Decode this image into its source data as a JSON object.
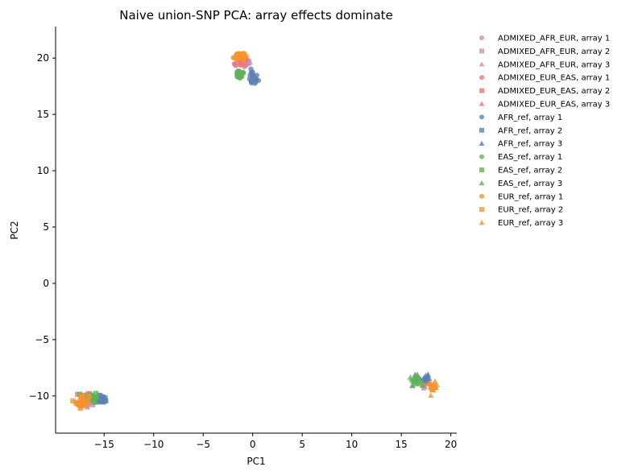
{
  "chart_data": {
    "type": "scatter",
    "title": "Naive union-SNP PCA: array effects dominate",
    "xlabel": "PC1",
    "ylabel": "PC2",
    "xlim": [
      -19.9,
      20.6
    ],
    "ylim": [
      -13.3,
      22.8
    ],
    "xticks": [
      -15,
      -10,
      -5,
      0,
      5,
      10,
      15,
      20
    ],
    "xtick_labels": [
      "−15",
      "−10",
      "−5",
      "0",
      "5",
      "10",
      "15",
      "20"
    ],
    "yticks": [
      -10,
      -5,
      0,
      5,
      10,
      15,
      20
    ],
    "ytick_labels": [
      "−10",
      "−5",
      "0",
      "5",
      "10",
      "15",
      "20"
    ],
    "grid": false,
    "legend_position": "outside-right",
    "colors": {
      "ADMIXED_AFR_EUR": "#c992b4",
      "ADMIXED_EUR_EAS": "#e8787c",
      "AFR_ref": "#5b82b4",
      "EAS_ref": "#63b05a",
      "EUR_ref": "#f7922e"
    },
    "markers": {
      "array 1": "circle",
      "array 2": "square",
      "array 3": "triangle"
    },
    "clusters": [
      {
        "name": "array 1 cluster",
        "center": [
          -0.8,
          19.0
        ]
      },
      {
        "name": "array 2 cluster",
        "center": [
          -16.5,
          -10.3
        ]
      },
      {
        "name": "array 3 cluster",
        "center": [
          17.3,
          -8.9
        ]
      }
    ],
    "series": [
      {
        "name": "ADMIXED_AFR_EUR, array 1",
        "group": "ADMIXED_AFR_EUR",
        "marker": "circle",
        "center": [
          -0.6,
          19.6
        ],
        "spread": [
          0.6,
          0.5
        ],
        "n": 12
      },
      {
        "name": "ADMIXED_AFR_EUR, array 2",
        "group": "ADMIXED_AFR_EUR",
        "marker": "square",
        "center": [
          -16.6,
          -10.4
        ],
        "spread": [
          0.7,
          0.4
        ],
        "n": 12
      },
      {
        "name": "ADMIXED_AFR_EUR, array 3",
        "group": "ADMIXED_AFR_EUR",
        "marker": "triangle",
        "center": [
          17.6,
          -9.0
        ],
        "spread": [
          0.5,
          0.4
        ],
        "n": 12
      },
      {
        "name": "ADMIXED_EUR_EAS, array 1",
        "group": "ADMIXED_EUR_EAS",
        "marker": "circle",
        "center": [
          -1.2,
          19.5
        ],
        "spread": [
          0.6,
          0.4
        ],
        "n": 12
      },
      {
        "name": "ADMIXED_EUR_EAS, array 2",
        "group": "ADMIXED_EUR_EAS",
        "marker": "square",
        "center": [
          -17.0,
          -10.2
        ],
        "spread": [
          0.6,
          0.5
        ],
        "n": 14
      },
      {
        "name": "ADMIXED_EUR_EAS, array 3",
        "group": "ADMIXED_EUR_EAS",
        "marker": "triangle",
        "center": [
          17.4,
          -8.8
        ],
        "spread": [
          0.4,
          0.3
        ],
        "n": 8
      },
      {
        "name": "AFR_ref, array 1",
        "group": "AFR_ref",
        "marker": "circle",
        "center": [
          0.0,
          18.2
        ],
        "spread": [
          0.5,
          0.6
        ],
        "n": 22
      },
      {
        "name": "AFR_ref, array 2",
        "group": "AFR_ref",
        "marker": "square",
        "center": [
          -15.2,
          -10.3
        ],
        "spread": [
          0.5,
          0.3
        ],
        "n": 20
      },
      {
        "name": "AFR_ref, array 3",
        "group": "AFR_ref",
        "marker": "triangle",
        "center": [
          17.2,
          -8.4
        ],
        "spread": [
          0.6,
          0.4
        ],
        "n": 20
      },
      {
        "name": "EAS_ref, array 1",
        "group": "EAS_ref",
        "marker": "circle",
        "center": [
          -1.3,
          18.6
        ],
        "spread": [
          0.5,
          0.4
        ],
        "n": 26
      },
      {
        "name": "EAS_ref, array 2",
        "group": "EAS_ref",
        "marker": "square",
        "center": [
          -16.3,
          -10.1
        ],
        "spread": [
          0.6,
          0.4
        ],
        "n": 24
      },
      {
        "name": "EAS_ref, array 3",
        "group": "EAS_ref",
        "marker": "triangle",
        "center": [
          16.4,
          -8.6
        ],
        "spread": [
          0.5,
          0.4
        ],
        "n": 24
      },
      {
        "name": "EUR_ref, array 1",
        "group": "EUR_ref",
        "marker": "circle",
        "center": [
          -1.4,
          20.2
        ],
        "spread": [
          0.5,
          0.4
        ],
        "n": 26
      },
      {
        "name": "EUR_ref, array 2",
        "group": "EUR_ref",
        "marker": "square",
        "center": [
          -17.2,
          -10.5
        ],
        "spread": [
          0.6,
          0.5
        ],
        "n": 26
      },
      {
        "name": "EUR_ref, array 3",
        "group": "EUR_ref",
        "marker": "triangle",
        "center": [
          18.2,
          -9.2
        ],
        "spread": [
          0.4,
          0.4
        ],
        "n": 24
      }
    ]
  }
}
